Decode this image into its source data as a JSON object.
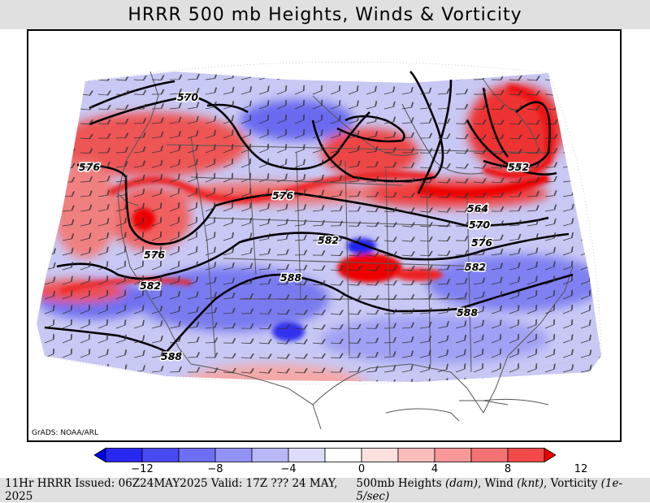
{
  "title": "HRRR 500 mb Heights, Winds & Vorticity",
  "credit": "GrADS: NOAA/ARL",
  "footer": {
    "left": "11Hr HRRR Issued: 06Z24MAY2025 Valid: 17Z ??? 24 MAY, 2025",
    "right_prefix": "500mb Heights ",
    "heights_unit": "(dam)",
    "wind_label": ", Wind ",
    "wind_unit": "(knt)",
    "vort_label": ", Vorticity ",
    "vort_unit": "(1e-5/sec)"
  },
  "colorbar": {
    "colors": [
      "#0000ee",
      "#2828f0",
      "#4a4af2",
      "#6e6ef4",
      "#9292f6",
      "#b8b8f8",
      "#dcdcfb",
      "#ffffff",
      "#fde0e0",
      "#fbbcbc",
      "#f89898",
      "#f57272",
      "#f24a4a",
      "#ee0000"
    ],
    "labels": [
      "−12",
      "−8",
      "−4",
      "0",
      "4",
      "8",
      "12"
    ]
  },
  "contours": {
    "labels": [
      "570",
      "576",
      "576",
      "576",
      "582",
      "582",
      "588",
      "588",
      "582",
      "576",
      "570",
      "564",
      "552"
    ]
  },
  "colors": {
    "positive_vorticity": "#ee2020",
    "negative_vorticity": "#3a3af0",
    "land_outline": "#555555",
    "contour": "#000000"
  }
}
